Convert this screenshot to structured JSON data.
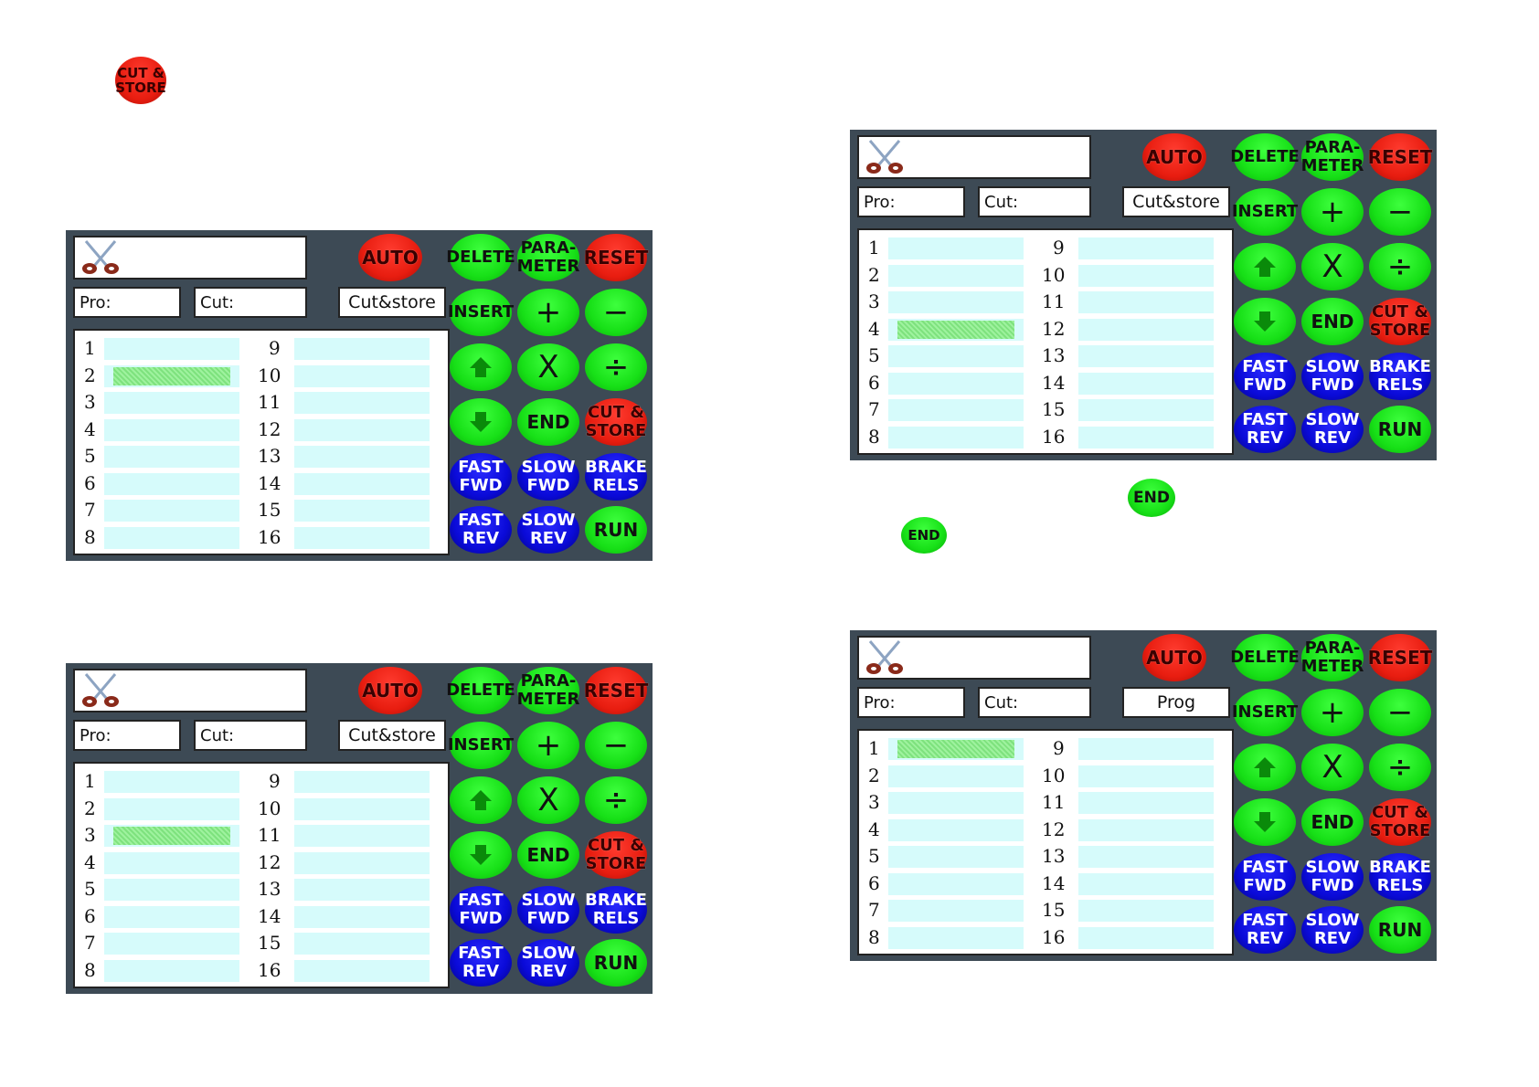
{
  "labels": {
    "auto": "AUTO",
    "delete": "DELETE",
    "parameter": "PARA-\nMETER",
    "reset": "RESET",
    "insert": "INSERT",
    "plus": "+",
    "minus": "−",
    "multiply": "X",
    "divide": "÷",
    "end": "END",
    "cut_store": "CUT &\nSTORE",
    "fast_fwd": "FAST\nFWD",
    "slow_fwd": "SLOW\nFWD",
    "brake_rels": "BRAKE\nRELS",
    "fast_rev": "FAST\nREV",
    "slow_rev": "SLOW\nREV",
    "run": "RUN",
    "pro": "Pro:",
    "cut": "Cut:"
  },
  "icons": {
    "logo": "scissors-icon",
    "up": "arrow-up-icon",
    "down": "arrow-down-icon"
  },
  "colors": {
    "panel_bg": "#3d4a55",
    "green": "#17e017",
    "red": "#e81d10",
    "blue": "#0a0ad8",
    "cell": "#d6fbfb",
    "selected": "#8ee88e"
  },
  "standalone": {
    "cut_store_badge": "CUT &\nSTORE",
    "end_badge_1": "END",
    "end_badge_2": "END"
  },
  "rows_left": [
    "1",
    "2",
    "3",
    "4",
    "5",
    "6",
    "7",
    "8"
  ],
  "rows_right": [
    "9",
    "10",
    "11",
    "12",
    "13",
    "14",
    "15",
    "16"
  ],
  "panels": [
    {
      "id": "top-left",
      "mode": "Cut&store",
      "selected_row": 2
    },
    {
      "id": "bottom-left",
      "mode": "Cut&store",
      "selected_row": 3
    },
    {
      "id": "top-right",
      "mode": "Cut&store",
      "selected_row": 4
    },
    {
      "id": "bottom-right",
      "mode": "Prog",
      "selected_row": 1
    }
  ]
}
